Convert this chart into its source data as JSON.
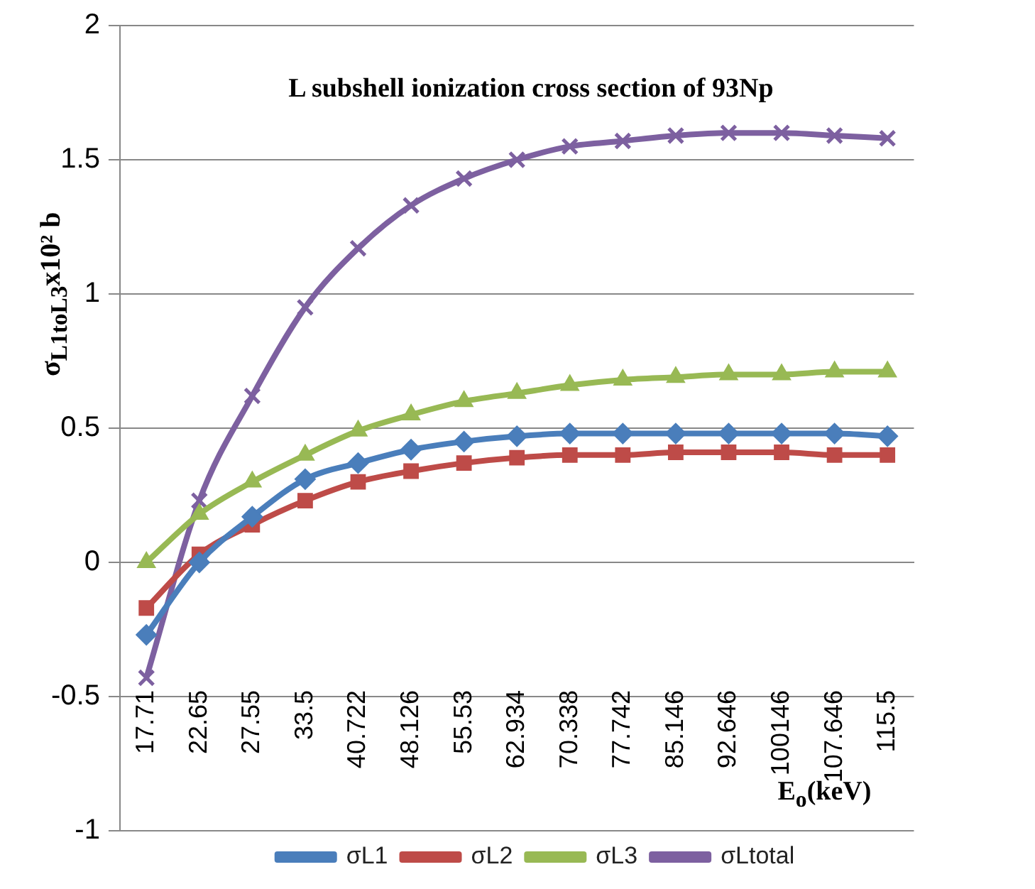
{
  "chart_data": {
    "type": "line",
    "title": "L subshell  ionization cross section of 93Np",
    "xlabel": "E$_{o}$(keV)",
    "ylabel": "σ$_{L1toL3}$x10² b",
    "categories": [
      "17.71",
      "22.65",
      "27.55",
      "33.5",
      "40.722",
      "48.126",
      "55.53",
      "62.934",
      "70.338",
      "77.742",
      "85.146",
      "92.646",
      "100146",
      "107.646",
      "115.5"
    ],
    "ylim": [
      -1,
      2
    ],
    "yticks": [
      -1,
      -0.5,
      0,
      0.5,
      1,
      1.5,
      2
    ],
    "grid": "y",
    "legend": "bottom",
    "series": [
      {
        "name": "σL1",
        "color": "#4a7ebb",
        "marker": "diamond",
        "values": [
          -0.27,
          0.0,
          0.17,
          0.31,
          0.37,
          0.42,
          0.45,
          0.47,
          0.48,
          0.48,
          0.48,
          0.48,
          0.48,
          0.48,
          0.47
        ]
      },
      {
        "name": "σL2",
        "color": "#be4b48",
        "marker": "square",
        "values": [
          -0.17,
          0.03,
          0.14,
          0.23,
          0.3,
          0.34,
          0.37,
          0.39,
          0.4,
          0.4,
          0.41,
          0.41,
          0.41,
          0.4,
          0.4
        ]
      },
      {
        "name": "σL3",
        "color": "#98b954",
        "marker": "triangle",
        "values": [
          0.0,
          0.18,
          0.3,
          0.4,
          0.49,
          0.55,
          0.6,
          0.63,
          0.66,
          0.68,
          0.69,
          0.7,
          0.7,
          0.71,
          0.71
        ]
      },
      {
        "name": "σLtotal",
        "color": "#7d60a0",
        "marker": "cross",
        "values": [
          -0.43,
          0.23,
          0.62,
          0.95,
          1.17,
          1.33,
          1.43,
          1.5,
          1.55,
          1.57,
          1.59,
          1.6,
          1.6,
          1.59,
          1.58
        ]
      }
    ]
  }
}
